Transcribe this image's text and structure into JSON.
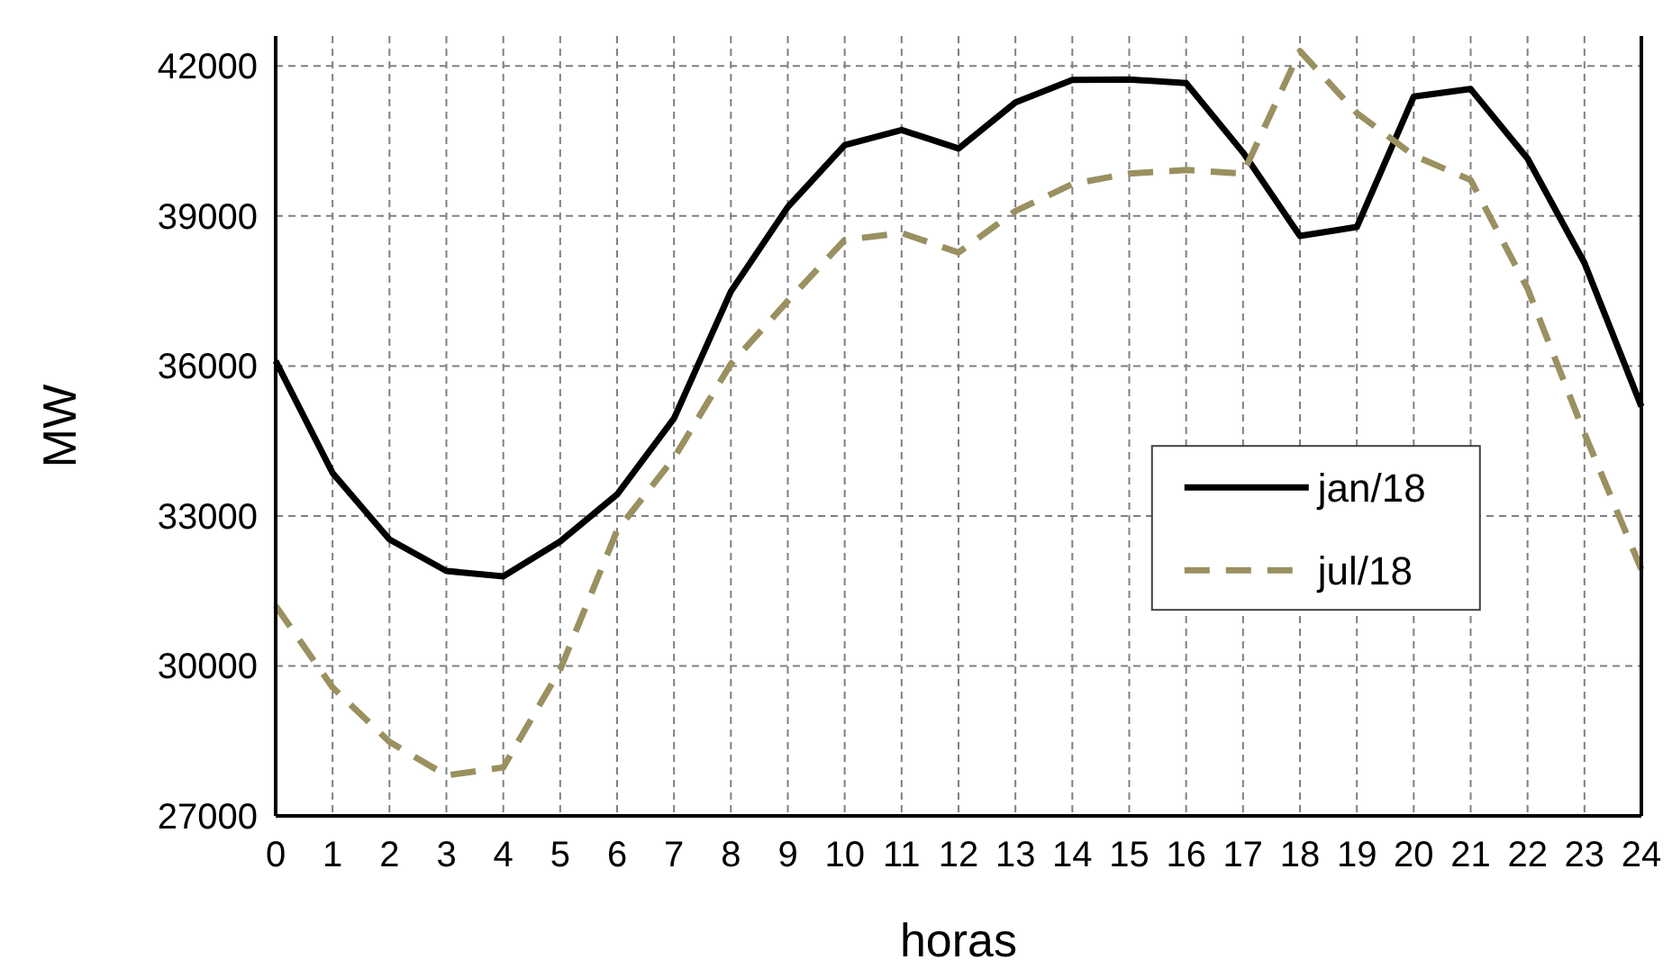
{
  "chart_data": {
    "type": "line",
    "xlabel": "horas",
    "ylabel": "MW",
    "x": [
      0,
      1,
      2,
      3,
      4,
      5,
      6,
      7,
      8,
      9,
      10,
      11,
      12,
      13,
      14,
      15,
      16,
      17,
      18,
      19,
      20,
      21,
      22,
      23,
      24
    ],
    "xlim": [
      0,
      24
    ],
    "xticks": [
      0,
      1,
      2,
      3,
      4,
      5,
      6,
      7,
      8,
      9,
      10,
      11,
      12,
      13,
      14,
      15,
      16,
      17,
      18,
      19,
      20,
      21,
      22,
      23,
      24
    ],
    "ylim": [
      27000,
      42600
    ],
    "yticks": [
      27000,
      30000,
      33000,
      36000,
      39000,
      42000
    ],
    "grid": true,
    "legend": "right",
    "series": [
      {
        "name": "jan/18",
        "color": "#000000",
        "line_style": "solid",
        "values": [
          36100,
          33860,
          32530,
          31900,
          31790,
          32490,
          33430,
          34950,
          37490,
          39180,
          40420,
          40720,
          40350,
          41270,
          41720,
          41730,
          41660,
          40270,
          38600,
          38780,
          41390,
          41540,
          40150,
          38060,
          35190
        ]
      },
      {
        "name": "jul/18",
        "color": "#9a9060",
        "line_style": "dashed",
        "values": [
          31200,
          29570,
          28480,
          27810,
          27970,
          29930,
          32710,
          34160,
          36040,
          37300,
          38520,
          38660,
          38270,
          39100,
          39640,
          39850,
          39920,
          39850,
          42300,
          41060,
          40210,
          39720,
          37550,
          34650,
          31930
        ]
      }
    ]
  }
}
